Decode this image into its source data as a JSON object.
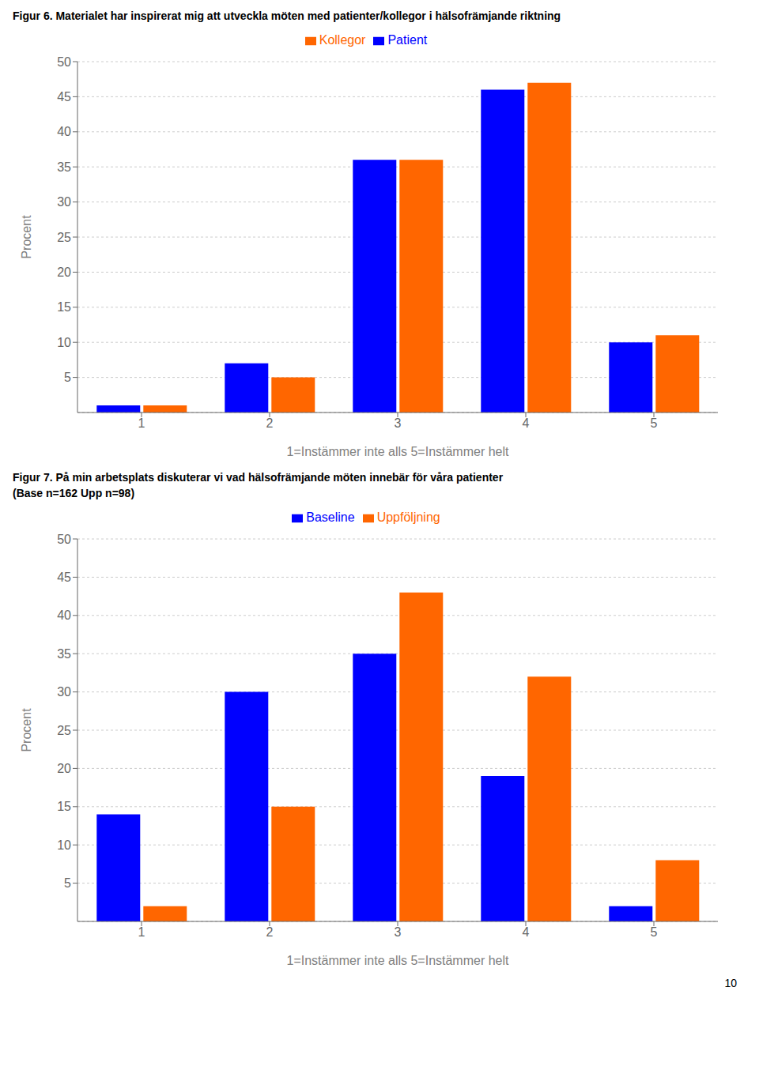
{
  "chart_data": [
    {
      "type": "bar",
      "title": "Figur 6.  Materialet har inspirerat mig att utveckla möten med patienter/kollegor i hälsofrämjande riktning",
      "categories": [
        1,
        2,
        3,
        4,
        5
      ],
      "series": [
        {
          "name": "Patient",
          "color": "#0000FF",
          "values": [
            1,
            7,
            36,
            46,
            10
          ]
        },
        {
          "name": "Kollegor",
          "color": "#FF6600",
          "values": [
            1,
            5,
            36,
            47,
            11
          ]
        }
      ],
      "xlabel": "1=Instämmer inte alls 5=Instämmer helt",
      "ylabel": "Procent",
      "ylim": [
        0,
        50
      ],
      "yticks": [
        5,
        10,
        15,
        20,
        25,
        30,
        35,
        40,
        45,
        50
      ],
      "grid": true,
      "legend": "top"
    },
    {
      "type": "bar",
      "title": "Figur  7. På min arbetsplats diskuterar vi vad hälsofrämjande möten innebär för våra patienter",
      "subtitle": "(Base n=162 Upp n=98)",
      "categories": [
        1,
        2,
        3,
        4,
        5
      ],
      "series": [
        {
          "name": "Baseline",
          "color": "#0000FF",
          "values": [
            14,
            30,
            35,
            19,
            2
          ]
        },
        {
          "name": "Uppföljning",
          "color": "#FF6600",
          "values": [
            2,
            15,
            43,
            32,
            8
          ]
        }
      ],
      "xlabel": "1=Instämmer inte alls 5=Instämmer helt",
      "ylabel": "Procent",
      "ylim": [
        0,
        50
      ],
      "yticks": [
        5,
        10,
        15,
        20,
        25,
        30,
        35,
        40,
        45,
        50
      ],
      "grid": true,
      "legend": "top",
      "annotations": [
        "10"
      ]
    }
  ]
}
